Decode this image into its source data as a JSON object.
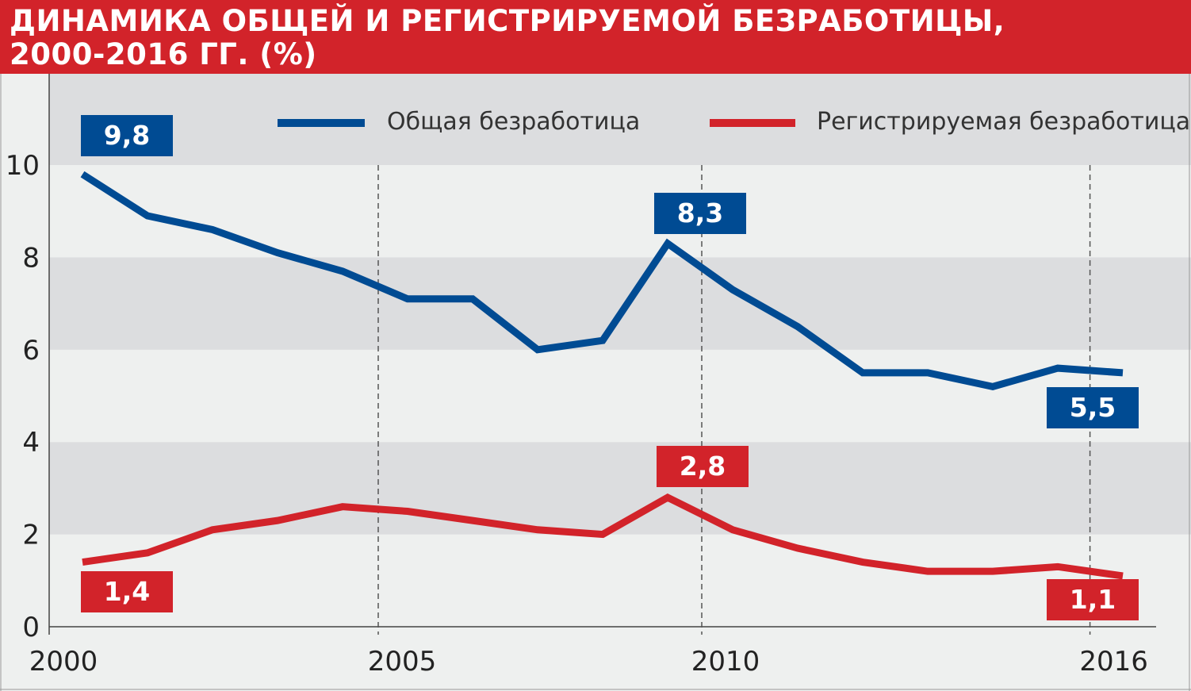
{
  "title": "ДИНАМИКА ОБЩЕЙ И РЕГИСТРИРУЕМОЙ БЕЗРАБОТИЦЫ, 2000-2016 ГГ. (%)",
  "title_lines": [
    "ДИНАМИКА ОБЩЕЙ И РЕГИСТРИРУЕМОЙ БЕЗРАБОТИЦЫ,",
    "2000-2016 ГГ. (%)"
  ],
  "colors": {
    "title_bg": "#d2232a",
    "blue": "#004b93",
    "red": "#d2232a",
    "band_dark": "#dcdddf",
    "band_light": "#eef0ef"
  },
  "chart_data": {
    "type": "line",
    "title": "ДИНАМИКА ОБЩЕЙ И РЕГИСТРИРУЕМОЙ БЕЗРАБОТИЦЫ, 2000-2016 ГГ. (%)",
    "xlabel": "",
    "ylabel": "",
    "x": [
      2000,
      2001,
      2002,
      2003,
      2004,
      2005,
      2006,
      2007,
      2008,
      2009,
      2010,
      2011,
      2012,
      2013,
      2014,
      2015,
      2016
    ],
    "series": [
      {
        "name": "Общая безработица",
        "color": "#004b93",
        "values": [
          9.8,
          8.9,
          8.6,
          8.1,
          7.7,
          7.1,
          7.1,
          6.0,
          6.2,
          8.3,
          7.3,
          6.5,
          5.5,
          5.5,
          5.2,
          5.6,
          5.5
        ]
      },
      {
        "name": "Регистрируемая безработица",
        "color": "#d2232a",
        "values": [
          1.4,
          1.6,
          2.1,
          2.3,
          2.6,
          2.5,
          2.3,
          2.1,
          2.0,
          2.8,
          2.1,
          1.7,
          1.4,
          1.2,
          1.2,
          1.3,
          1.1
        ]
      }
    ],
    "ylim": [
      0,
      12
    ],
    "yticks": [
      "0",
      "2",
      "4",
      "6",
      "8",
      "10"
    ],
    "ytick_values": [
      0,
      2,
      4,
      6,
      8,
      10
    ],
    "xticks": [
      "2000",
      "2005",
      "2010",
      "2016"
    ],
    "xtick_values": [
      2000,
      2005,
      2010,
      2016
    ],
    "legend_position": "top",
    "annotations": {
      "blue_start": "9,8",
      "blue_peak": "8,3",
      "blue_end": "5,5",
      "red_start": "1,4",
      "red_peak": "2,8",
      "red_end": "1,1"
    }
  }
}
